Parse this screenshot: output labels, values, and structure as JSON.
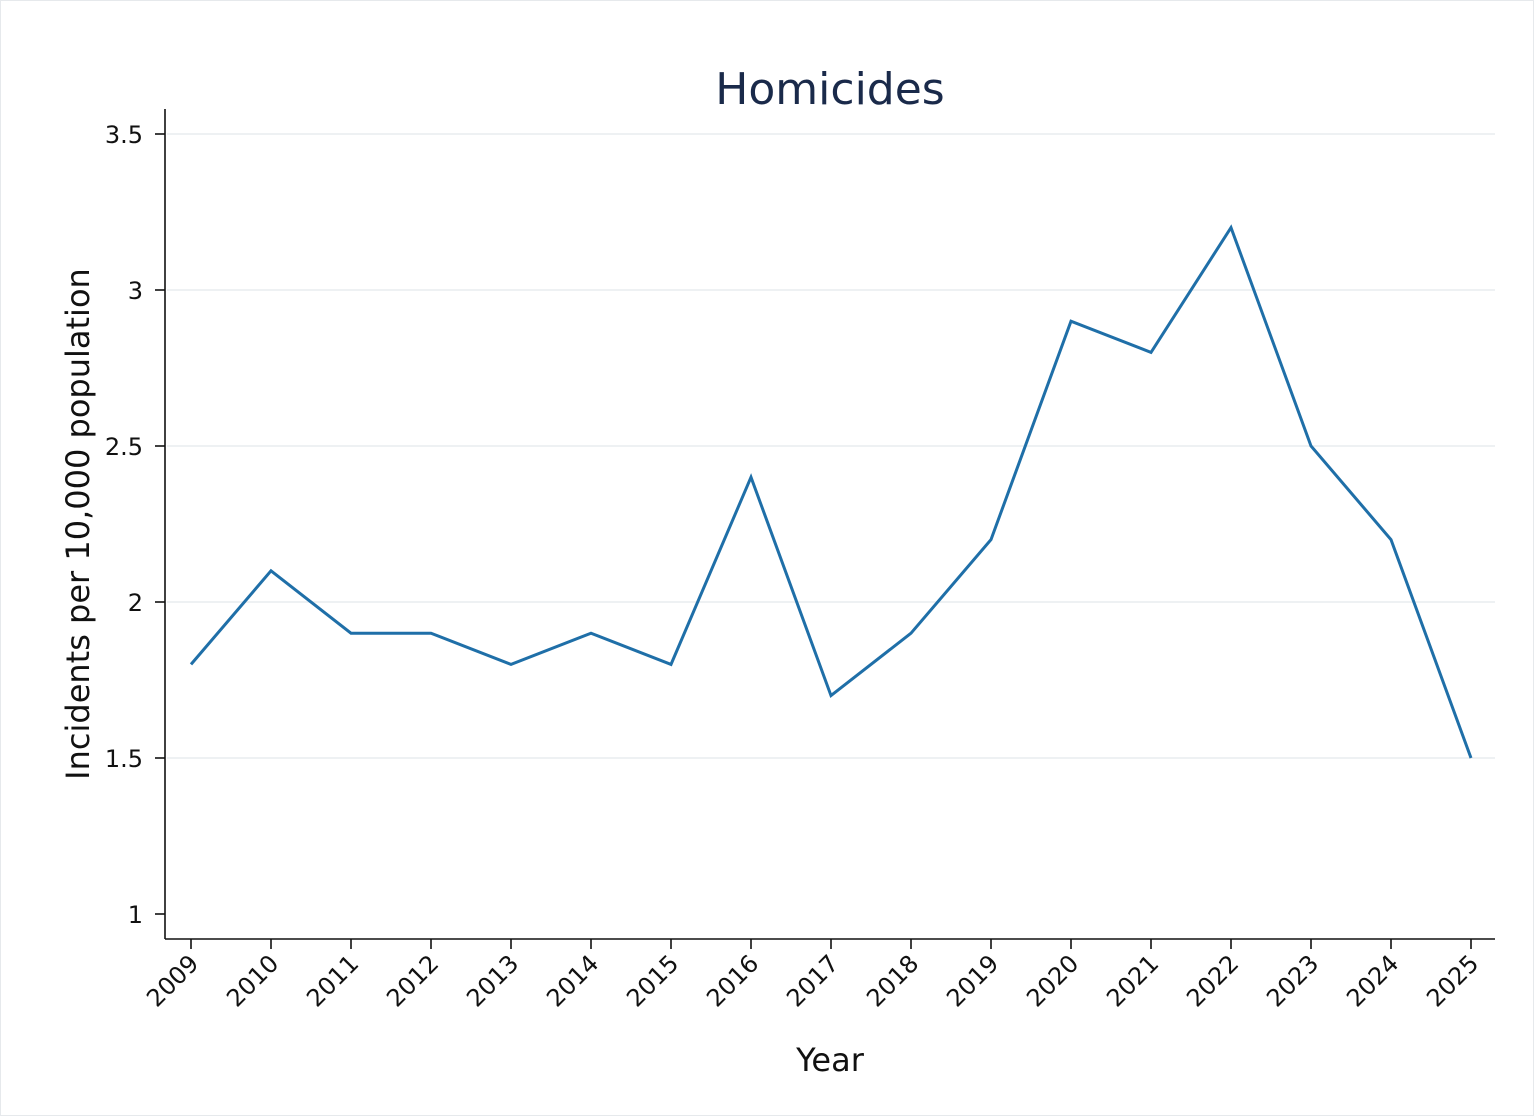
{
  "chart_data": {
    "type": "line",
    "title": "Homicides",
    "xlabel": "Year",
    "ylabel": "Incidents per 10,000 population",
    "categories": [
      "2009",
      "2010",
      "2011",
      "2012",
      "2013",
      "2014",
      "2015",
      "2016",
      "2017",
      "2018",
      "2019",
      "2020",
      "2021",
      "2022",
      "2023",
      "2024",
      "2025"
    ],
    "series": [
      {
        "values": [
          1.8,
          2.1,
          1.9,
          1.9,
          1.8,
          1.9,
          1.8,
          2.4,
          1.7,
          1.9,
          2.2,
          2.9,
          2.8,
          3.2,
          2.5,
          2.2,
          1.5
        ],
        "color": "#1f6fa8"
      }
    ],
    "yticks": [
      1,
      1.5,
      2,
      2.5,
      3,
      3.5
    ],
    "ytick_labels": [
      "1",
      "1.5",
      "2",
      "2.5",
      "3",
      "3.5"
    ],
    "ylim": [
      1,
      3.5
    ],
    "grid": "horizontal",
    "legend": "none"
  }
}
